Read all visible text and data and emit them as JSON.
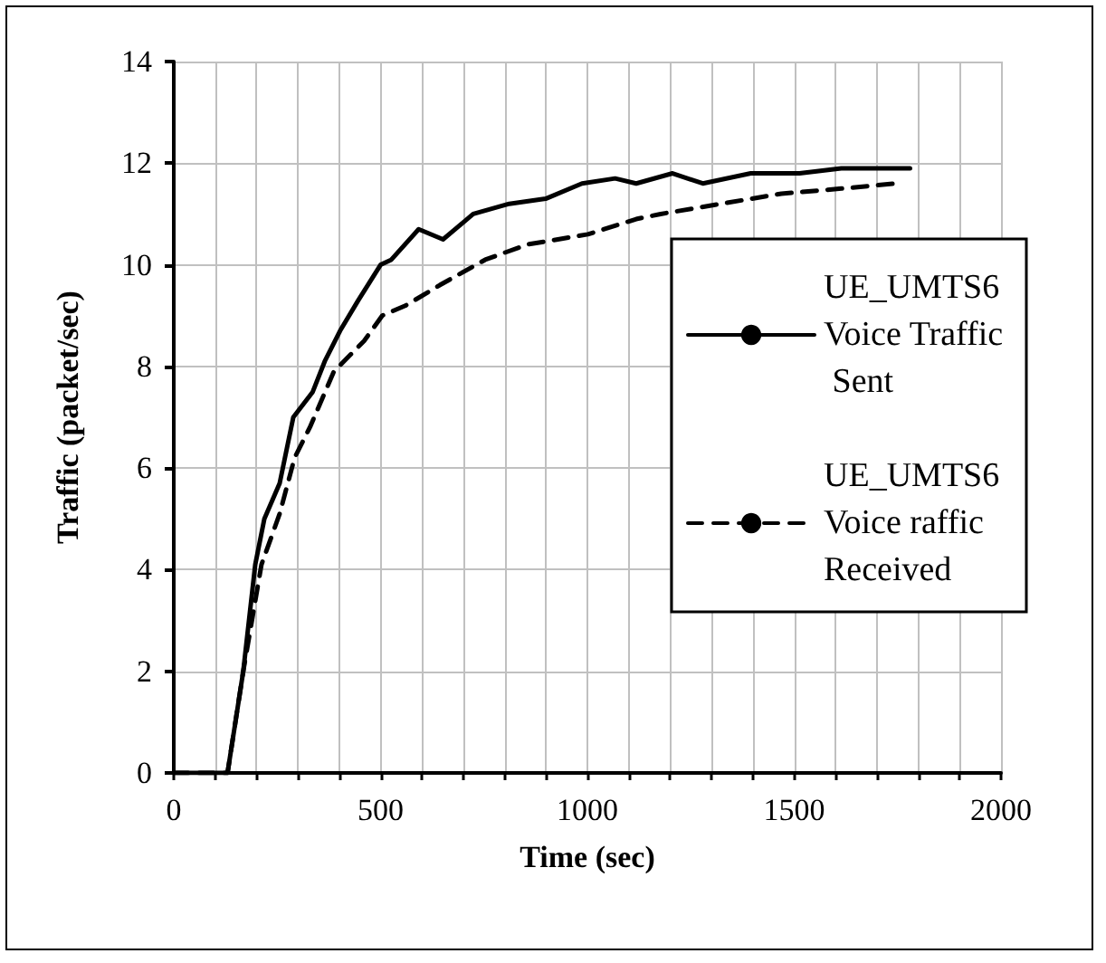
{
  "chart_data": {
    "type": "line",
    "xlabel": "Time (sec)",
    "ylabel": "Traffic (packet/sec)",
    "series": [
      {
        "name": "UE_UMTS6 Voice Traffic Sent",
        "color": "#000000",
        "line_style": "solid",
        "x": [
          0,
          130,
          168,
          197,
          219,
          256,
          289,
          336,
          365,
          402,
          446,
          500,
          526,
          592,
          651,
          724,
          811,
          899,
          987,
          1067,
          1118,
          1206,
          1279,
          1395,
          1513,
          1614,
          1689,
          1780
        ],
        "values": [
          0,
          0,
          2.0,
          4.1,
          5.0,
          5.7,
          7.0,
          7.5,
          8.1,
          8.7,
          9.3,
          10.0,
          10.1,
          10.7,
          10.5,
          11.0,
          11.2,
          11.3,
          11.6,
          11.7,
          11.6,
          11.8,
          11.6,
          11.8,
          11.8,
          11.9,
          11.9,
          11.9
        ]
      },
      {
        "name": "UE_UMTS6 Voice raffic Received",
        "color": "#000000",
        "line_style": "dashed",
        "x": [
          0,
          130,
          168,
          212,
          256,
          292,
          329,
          387,
          460,
          504,
          561,
          643,
          753,
          855,
          1001,
          1118,
          1177,
          1323,
          1469,
          1614,
          1746
        ],
        "values": [
          0,
          0,
          2.0,
          4.1,
          5.1,
          6.2,
          6.8,
          7.9,
          8.5,
          9.0,
          9.2,
          9.6,
          10.1,
          10.4,
          10.6,
          10.9,
          11.0,
          11.2,
          11.4,
          11.5,
          11.6
        ]
      }
    ],
    "xlim": [
      0,
      2000
    ],
    "xticks": [
      0,
      {
        "value": 100,
        "label": null
      },
      {
        "value": 200,
        "label": null
      },
      {
        "value": 300,
        "label": null
      },
      {
        "value": 400,
        "label": null
      },
      500,
      {
        "value": 600,
        "label": null
      },
      {
        "value": 700,
        "label": null
      },
      {
        "value": 800,
        "label": null
      },
      {
        "value": 900,
        "label": null
      },
      1000,
      {
        "value": 1100,
        "label": null
      },
      {
        "value": 1200,
        "label": null
      },
      {
        "value": 1300,
        "label": null
      },
      {
        "value": 1400,
        "label": null
      },
      1500,
      {
        "value": 1600,
        "label": null
      },
      {
        "value": 1700,
        "label": null
      },
      {
        "value": 1800,
        "label": null
      },
      {
        "value": 1900,
        "label": null
      },
      2000
    ],
    "ylim": [
      0,
      14
    ],
    "yticks": [
      0,
      2,
      4,
      6,
      8,
      10,
      12,
      14
    ],
    "grid": true,
    "legend": "right",
    "marker": "none"
  }
}
